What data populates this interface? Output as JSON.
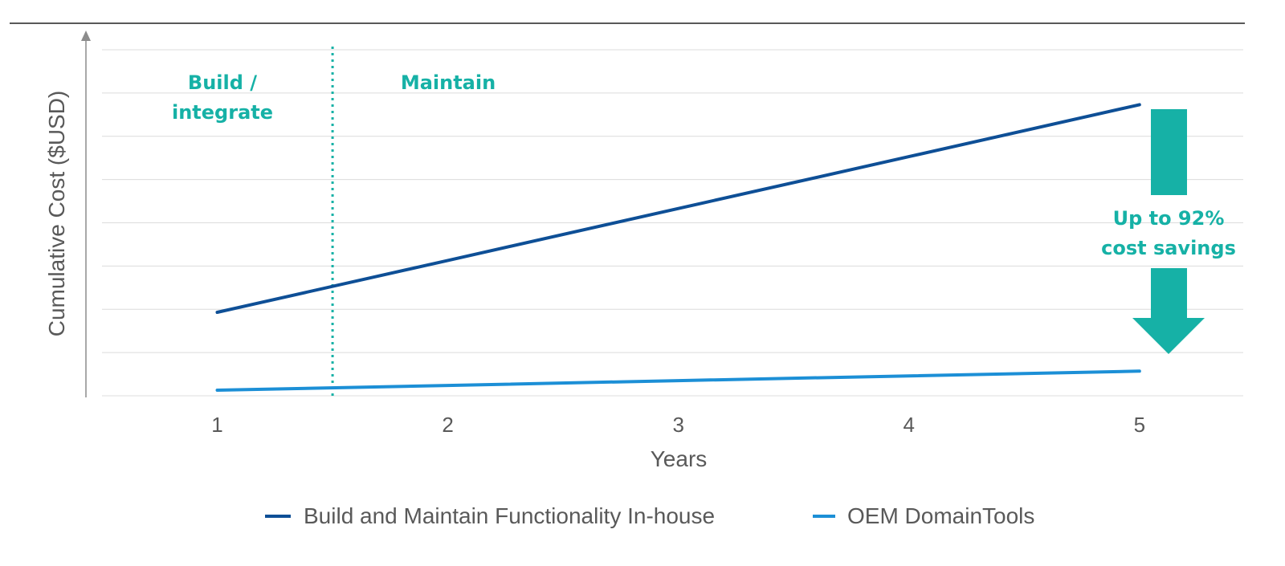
{
  "colors": {
    "in_house": "#0e4f96",
    "oem": "#1c8fd6",
    "accent": "#16b1a6",
    "grid": "#dcdcdc",
    "axis": "#8c8c8c",
    "text": "#595959"
  },
  "annotations": {
    "build_line1": "Build /",
    "build_line2": "integrate",
    "maintain": "Maintain",
    "savings_line1": "Up to 92%",
    "savings_line2": "cost savings",
    "phase_divider_x": 1.5
  },
  "chart_data": {
    "type": "line",
    "title": "",
    "xlabel": "Years",
    "ylabel": "Cumulative Cost ($USD)",
    "x": [
      1,
      2,
      3,
      4,
      5
    ],
    "xlim": [
      0.5,
      5.45
    ],
    "ylim": [
      0,
      8
    ],
    "y_ticks_labeled": false,
    "grid": true,
    "legend_position": "bottom",
    "series": [
      {
        "name": "Build and Maintain Functionality In-house",
        "color": "#0e4f96",
        "values": [
          1.93,
          3.13,
          4.33,
          5.53,
          6.73
        ]
      },
      {
        "name": "OEM DomainTools",
        "color": "#1c8fd6",
        "values": [
          0.13,
          0.24,
          0.35,
          0.46,
          0.57
        ]
      }
    ]
  }
}
